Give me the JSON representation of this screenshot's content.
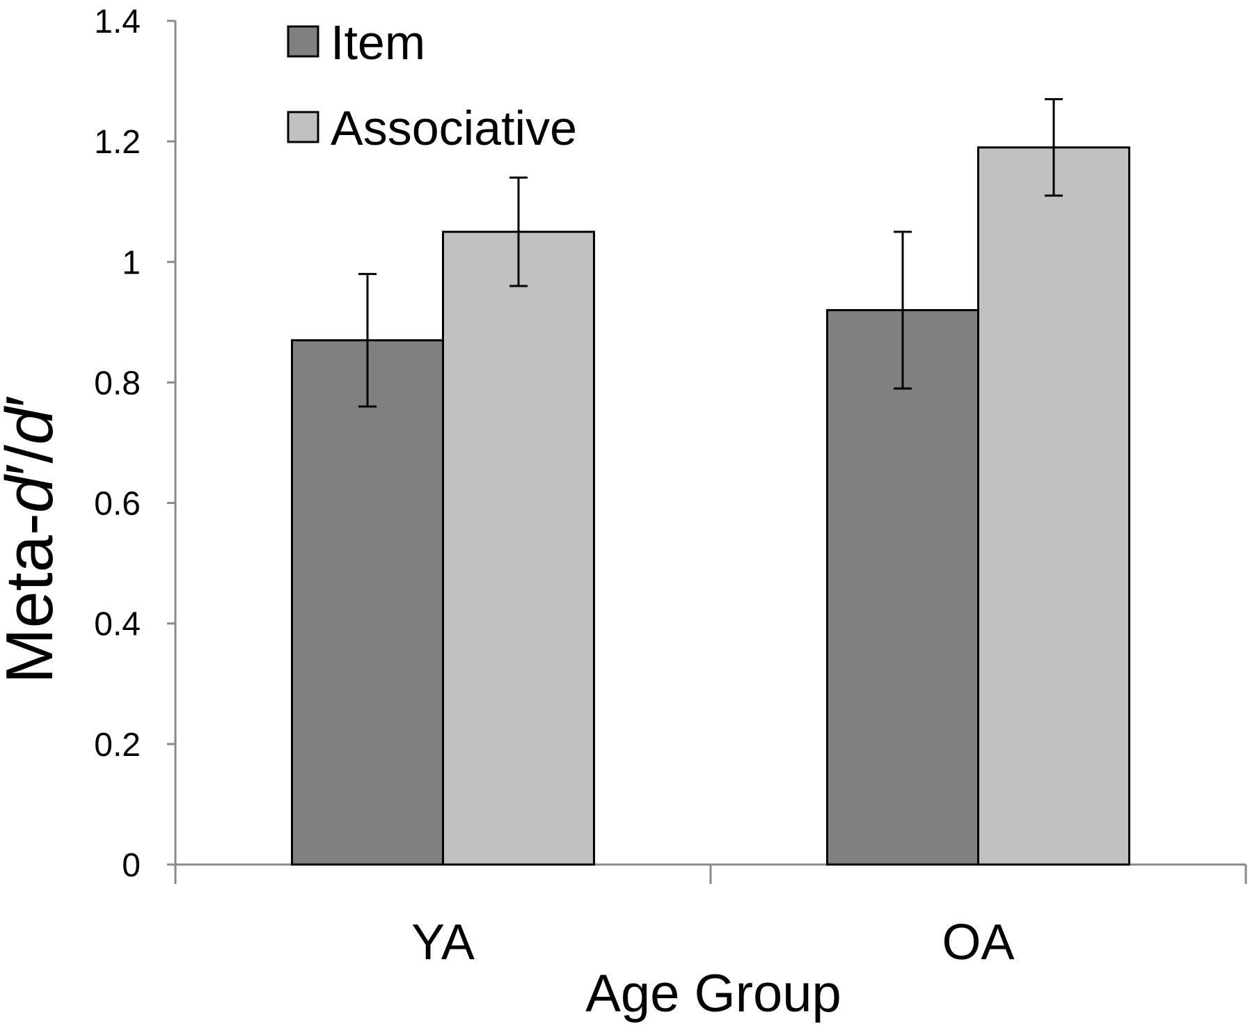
{
  "chart_data": {
    "type": "bar",
    "title": "",
    "xlabel": "Age Group",
    "ylabel": "Meta-d′/d′",
    "ylabel_parts": {
      "prefix": "Meta-",
      "d1": "d",
      "prime1": "′",
      "slash": "/",
      "d2": "d",
      "prime2": "′"
    },
    "ylim": [
      0,
      1.4
    ],
    "yticks": [
      0,
      0.2,
      0.4,
      0.6,
      0.8,
      1,
      1.2,
      1.4
    ],
    "ytick_labels": [
      "0",
      "0.2",
      "0.4",
      "0.6",
      "0.8",
      "1",
      "1.2",
      "1.4"
    ],
    "categories": [
      "YA",
      "OA"
    ],
    "series": [
      {
        "name": "Item",
        "color": "#808080",
        "values": [
          0.87,
          0.92
        ],
        "error": [
          0.11,
          0.13
        ]
      },
      {
        "name": "Associative",
        "color": "#c0c0c0",
        "values": [
          1.05,
          1.19
        ],
        "error": [
          0.09,
          0.08
        ]
      }
    ],
    "legend_position": "top-left",
    "grid": false
  }
}
